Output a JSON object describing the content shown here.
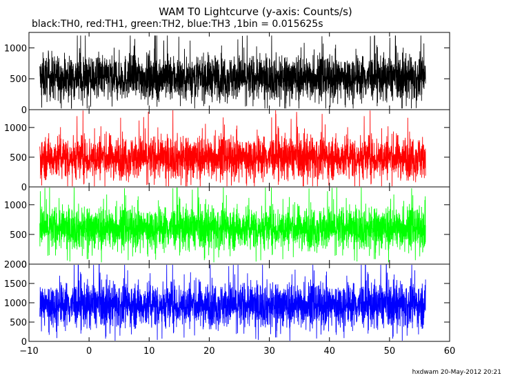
{
  "chart_data": {
    "type": "line",
    "title": "WAM T0 Lightcurve (y-axis: Counts/s)",
    "subtitle": "black:TH0, red:TH1, green:TH2, blue:TH3 ,1bin = 0.015625s",
    "footer": "hxdwam 20-May-2012 20:21",
    "xlim": [
      -10,
      60
    ],
    "x_ticks": [
      "-10",
      "0",
      "10",
      "20",
      "30",
      "40",
      "50",
      "60"
    ],
    "x_range_data": [
      -8.2,
      56.0
    ],
    "grid": false,
    "panels": [
      {
        "name": "TH0",
        "color": "#000000",
        "ylim": [
          0,
          1250
        ],
        "y_ticks": [
          "0",
          "500",
          "1000"
        ],
        "baseline": 520,
        "typical_range": [
          200,
          850
        ],
        "max_spike": 1200,
        "min_dip": 20
      },
      {
        "name": "TH1",
        "color": "#ff0000",
        "ylim": [
          0,
          1300
        ],
        "y_ticks": [
          "0",
          "500",
          "1000"
        ],
        "baseline": 500,
        "typical_range": [
          200,
          850
        ],
        "max_spike": 1300,
        "min_dip": 10
      },
      {
        "name": "TH2",
        "color": "#00ff00",
        "ylim": [
          0,
          1300
        ],
        "y_ticks": [
          "0",
          "500",
          "1000"
        ],
        "baseline": 610,
        "typical_range": [
          300,
          950
        ],
        "max_spike": 1300,
        "min_dip": 30
      },
      {
        "name": "TH3",
        "color": "#0000ff",
        "ylim": [
          0,
          2000
        ],
        "y_ticks": [
          "0",
          "500",
          "1000",
          "1500",
          "2000"
        ],
        "baseline": 950,
        "typical_range": [
          450,
          1500
        ],
        "max_spike": 2000,
        "min_dip": 0
      }
    ]
  }
}
